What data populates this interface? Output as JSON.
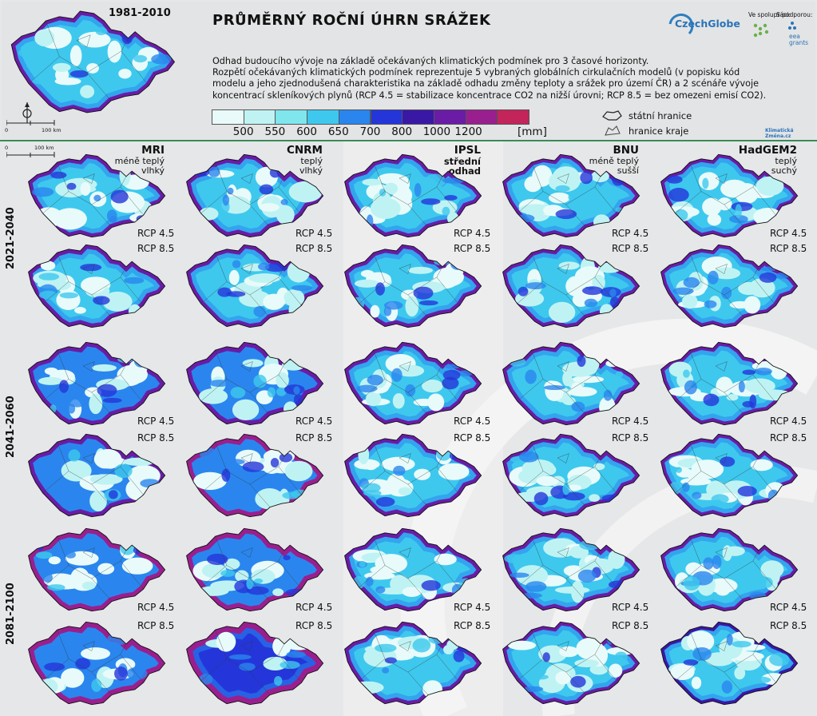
{
  "title": "PRŮMĚRNÝ ROČNÍ ÚHRN SRÁŽEK",
  "reference_period": "1981-2010",
  "description": [
    "Odhad budoucího vývoje na základě očekávaných klimatických podmínek pro 3 časové horizonty.",
    "Rozpětí očekávaných klimatických podmínek reprezentuje 5 vybraných globálních cirkulačních modelů (v popisku kód",
    "modelu a jeho zjednodušená charakteristika na základě odhadu změny teploty a srážek pro území ČR) a 2 scénáře vývoje",
    "koncentrací skleníkových plynů (RCP 4.5 = stabilizace koncentrace CO2 na nižší úrovni; RCP 8.5 = bez omezeni emisí CO2)."
  ],
  "legend": {
    "colors": [
      "#e8fbfa",
      "#bff3f3",
      "#7fe6ee",
      "#3ec8ee",
      "#2a86ee",
      "#2436d9",
      "#3a18a6",
      "#6a1ca6",
      "#9a1f8e",
      "#c3245a"
    ],
    "labels": [
      "500",
      "550",
      "600",
      "650",
      "700",
      "800",
      "1000",
      "1200"
    ],
    "unit": "[mm]"
  },
  "boundaries": {
    "state": "státní hranice",
    "region": "hranice kraje"
  },
  "scale": "100 km",
  "scale_zero": "0",
  "logos": {
    "czechglobe": "CzechGlobe",
    "cooperation": "Ve spolupráci:",
    "support": "S podporou:",
    "eea": "eea grants",
    "klima": "Klimatická Změna.cz"
  },
  "models": [
    {
      "code": "MRI",
      "desc1": "méně teplý",
      "desc2": "vlhký"
    },
    {
      "code": "CNRM",
      "desc1": "teplý",
      "desc2": "vlhký"
    },
    {
      "code": "IPSL",
      "desc1": "střední",
      "desc2": "odhad"
    },
    {
      "code": "BNU",
      "desc1": "méně teplý",
      "desc2": "sušší"
    },
    {
      "code": "HadGEM2",
      "desc1": "teplý",
      "desc2": "suchý"
    }
  ],
  "periods": [
    "2021-2040",
    "2041-2060",
    "2081-2100"
  ],
  "scenarios": [
    "RCP 4.5",
    "RCP 8.5"
  ],
  "wetness": [
    [
      [
        0.3,
        0.35,
        0.28,
        0.22,
        0.18
      ],
      [
        0.35,
        0.3,
        0.3,
        0.25,
        0.2
      ]
    ],
    [
      [
        0.38,
        0.45,
        0.3,
        0.28,
        0.22
      ],
      [
        0.4,
        0.5,
        0.32,
        0.26,
        0.2
      ]
    ],
    [
      [
        0.5,
        0.58,
        0.35,
        0.3,
        0.22
      ],
      [
        0.62,
        0.78,
        0.3,
        0.22,
        0.14
      ]
    ]
  ],
  "reference_wetness": 0.3
}
